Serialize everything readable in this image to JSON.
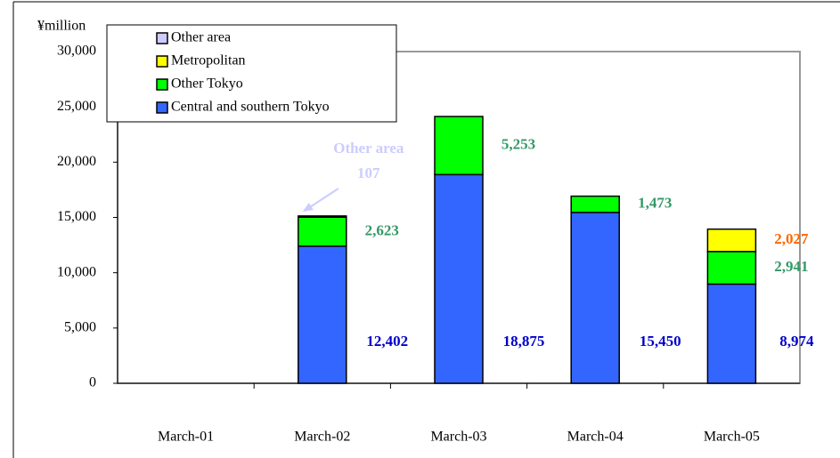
{
  "chart_data": {
    "type": "stacked_bar",
    "y_axis_label": "¥million",
    "categories": [
      "March-01",
      "March-02",
      "March-03",
      "March-04",
      "March-05"
    ],
    "series": [
      {
        "name": "Central and southern Tokyo",
        "color": "#3366ff",
        "label_color": "#0000cc",
        "values": [
          null,
          12402,
          18875,
          15450,
          8974
        ],
        "value_labels": [
          null,
          "12,402",
          "18,875",
          "15,450",
          "8,974"
        ]
      },
      {
        "name": "Other Tokyo",
        "color": "#00ff00",
        "label_color": "#339966",
        "values": [
          null,
          2623,
          5253,
          1473,
          2941
        ],
        "value_labels": [
          null,
          "2,623",
          "5,253",
          "1,473",
          "2,941"
        ]
      },
      {
        "name": "Metropolitan",
        "color": "#ffff00",
        "label_color": "#ff6600",
        "values": [
          null,
          null,
          null,
          null,
          2027
        ],
        "value_labels": [
          null,
          null,
          null,
          null,
          "2,027"
        ]
      },
      {
        "name": "Other area",
        "color": "#ccccff",
        "label_color": "#ccccff",
        "values": [
          null,
          107,
          null,
          null,
          null
        ],
        "value_labels": [
          null,
          "107",
          null,
          null,
          null
        ]
      }
    ],
    "ylim": [
      0,
      30000
    ],
    "yticks": [
      0,
      {
        "value": 5000,
        "label": "5,000"
      },
      {
        "value": 10000,
        "label": "10,000"
      },
      {
        "value": 15000,
        "label": "15,000"
      },
      {
        "value": 20000,
        "label": "20,000"
      },
      {
        "value": 25000,
        "label": "25,000"
      },
      {
        "value": 30000,
        "label": "30,000"
      }
    ],
    "legend": "top-left"
  }
}
